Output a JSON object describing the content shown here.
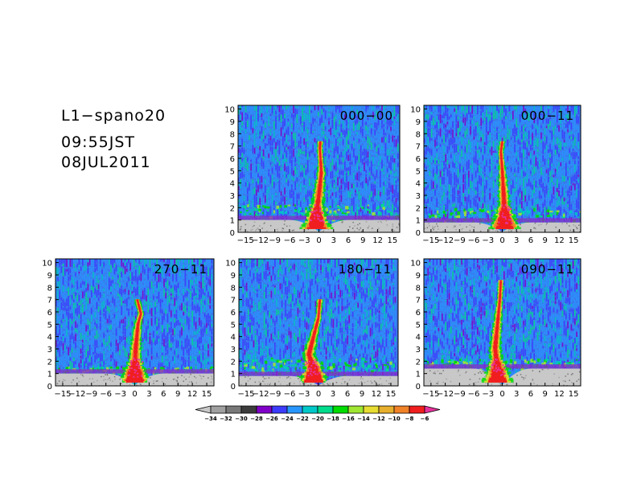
{
  "header": {
    "site": "L1−spano20",
    "time": "09:55JST",
    "date": "08JUL2011"
  },
  "axes": {
    "x_ticks": [
      "−15",
      "−12",
      "−9",
      "−6",
      "−3",
      "0",
      "3",
      "6",
      "9",
      "12",
      "15"
    ],
    "x_values": [
      -15,
      -12,
      -9,
      -6,
      -3,
      0,
      3,
      6,
      9,
      12,
      15
    ],
    "y_ticks": [
      "0",
      "1",
      "2",
      "3",
      "4",
      "5",
      "6",
      "7",
      "8",
      "9",
      "10"
    ],
    "y_values": [
      0,
      1,
      2,
      3,
      4,
      5,
      6,
      7,
      8,
      9,
      10
    ],
    "xlim": [
      -16.5,
      16.5
    ],
    "ylim": [
      0,
      10.3
    ]
  },
  "colorbar": {
    "labels": [
      "−34",
      "−32",
      "−30",
      "−28",
      "−26",
      "−24",
      "−22",
      "−20",
      "−18",
      "−16",
      "−14",
      "−12",
      "−10",
      "−8",
      "−6"
    ],
    "values": [
      -34,
      -32,
      -30,
      -28,
      -26,
      -24,
      -22,
      -20,
      -18,
      -16,
      -14,
      -12,
      -10,
      -8,
      -6
    ],
    "colors": [
      "#c8c8c8",
      "#a0a0a0",
      "#787878",
      "#3c3c3c",
      "#8000c8",
      "#3c3cff",
      "#2896ff",
      "#00c8c8",
      "#00dc8c",
      "#00dc00",
      "#a0e632",
      "#e6dc32",
      "#e6af2d",
      "#f08228",
      "#f01e1e",
      "#e6329b"
    ]
  },
  "chart_data": [
    {
      "type": "heatmap",
      "title": "000−00",
      "plume": [
        [
          -0.5,
          1.4
        ],
        [
          0,
          3
        ],
        [
          0.5,
          4.8
        ],
        [
          0.2,
          6.8
        ],
        [
          0.3,
          7.3
        ]
      ],
      "ground_layer_top_km": 1.0,
      "boundary_layer_top_km": 2.3
    },
    {
      "type": "heatmap",
      "title": "000−11",
      "plume": [
        [
          0.5,
          1.2
        ],
        [
          0.3,
          3
        ],
        [
          0,
          5
        ],
        [
          -0.3,
          6.5
        ],
        [
          0,
          7.3
        ]
      ],
      "ground_layer_top_km": 0.8,
      "boundary_layer_top_km": 2.0
    },
    {
      "type": "heatmap",
      "title": "270−11",
      "plume": [
        [
          0,
          1.2
        ],
        [
          0.2,
          3
        ],
        [
          0.7,
          5
        ],
        [
          1.3,
          5.8
        ],
        [
          0.5,
          7
        ]
      ],
      "ground_layer_top_km": 1.0,
      "boundary_layer_top_km": 1.6
    },
    {
      "type": "heatmap",
      "title": "180−11",
      "plume": [
        [
          -1,
          1.4
        ],
        [
          -2,
          2.5
        ],
        [
          -1,
          4
        ],
        [
          0,
          5.5
        ],
        [
          0.3,
          7
        ]
      ],
      "ground_layer_top_km": 0.8,
      "boundary_layer_top_km": 2.3
    },
    {
      "type": "heatmap",
      "title": "090−11",
      "plume": [
        [
          -1,
          1.3
        ],
        [
          -1.5,
          3
        ],
        [
          -1,
          5
        ],
        [
          -0.5,
          7
        ],
        [
          -0.3,
          8.5
        ]
      ],
      "ground_layer_top_km": 1.4,
      "boundary_layer_top_km": 2.2
    }
  ]
}
